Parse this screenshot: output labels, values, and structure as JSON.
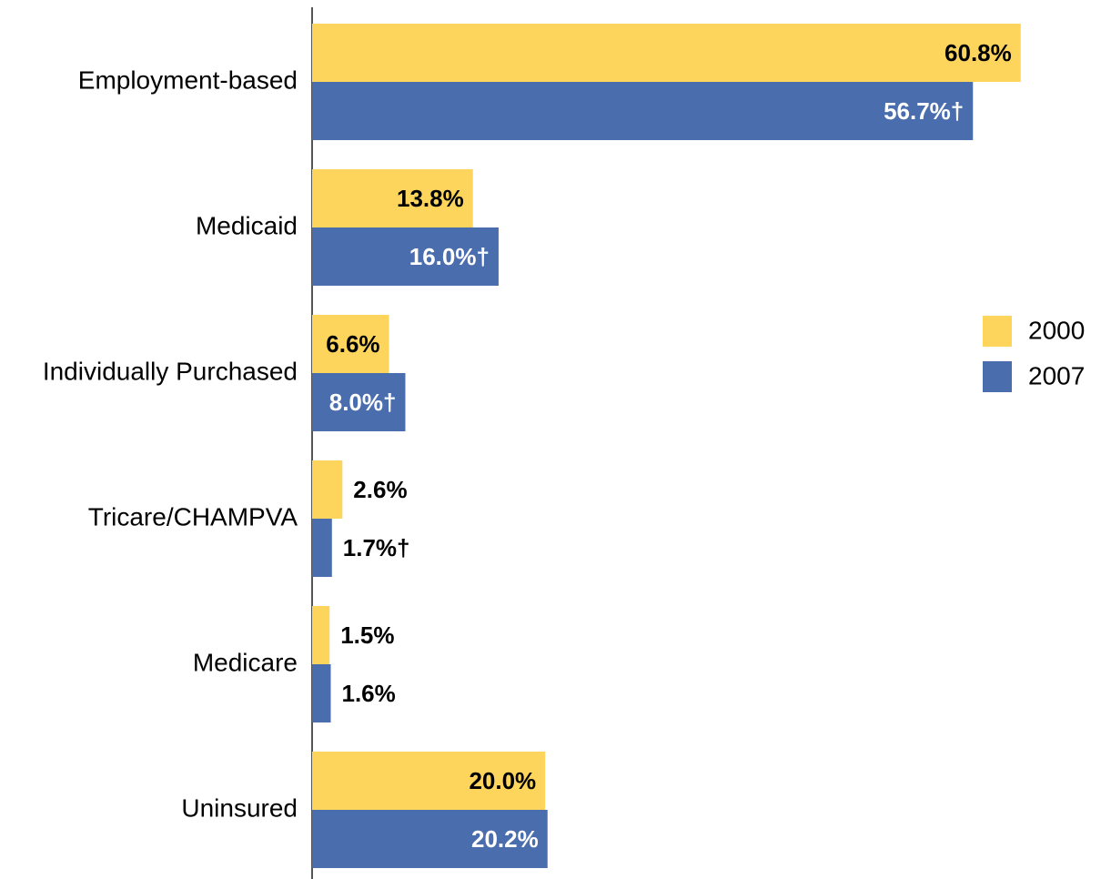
{
  "chart_data": {
    "type": "bar",
    "orientation": "horizontal",
    "categories": [
      "Employment-based",
      "Medicaid",
      "Individually Purchased",
      "Tricare/CHAMPVA",
      "Medicare",
      "Uninsured"
    ],
    "series": [
      {
        "name": "2000",
        "color": "#fdd55c",
        "values": [
          60.8,
          13.8,
          6.6,
          2.6,
          1.5,
          20.0
        ],
        "value_labels": [
          "60.8%",
          "13.8%",
          "6.6%",
          "2.6%",
          "1.5%",
          "20.0%"
        ]
      },
      {
        "name": "2007",
        "color": "#4a6dad",
        "values": [
          56.7,
          16.0,
          8.0,
          1.7,
          1.6,
          20.2
        ],
        "value_labels": [
          "56.7%†",
          "16.0%†",
          "8.0%†",
          "1.7%†",
          "1.6%",
          "20.2%"
        ]
      }
    ],
    "xlim": [
      0,
      68
    ],
    "grid": false,
    "legend": "right"
  }
}
